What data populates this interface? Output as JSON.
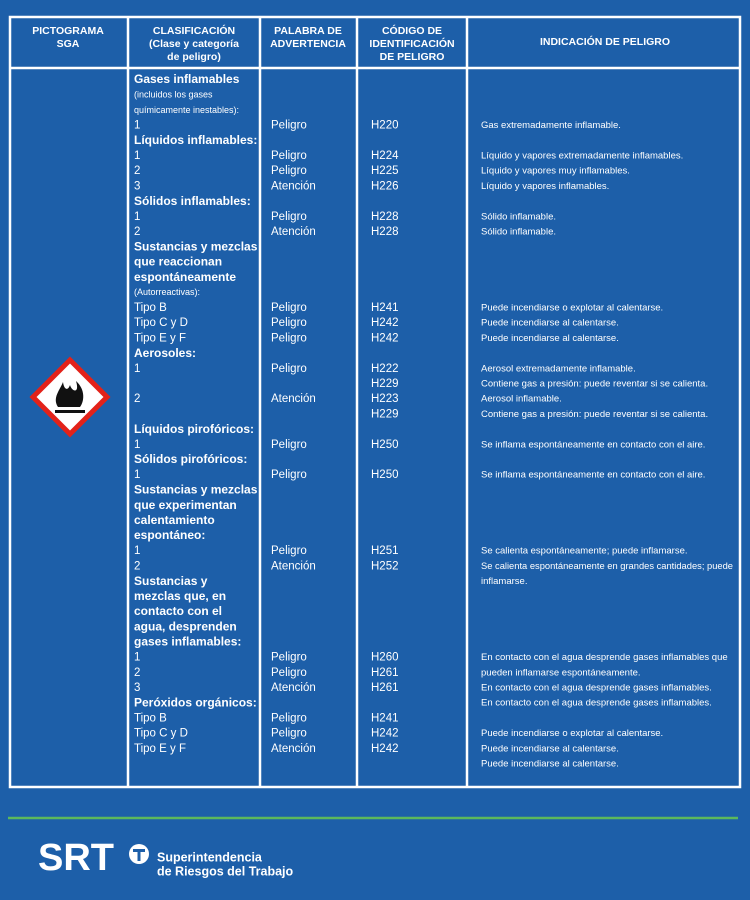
{
  "header": {
    "columns": [
      {
        "lines": [
          "PICTOGRAMA",
          "SGA"
        ]
      },
      {
        "lines": [
          "CLASIFICACIÓN",
          "(Clase y categoría",
          "de peligro)"
        ]
      },
      {
        "lines": [
          "PALABRA DE",
          "ADVERTENCIA"
        ]
      },
      {
        "lines": [
          "CÓDIGO DE",
          "IDENTIFICACIÓN",
          "DE PELIGRO"
        ]
      },
      {
        "lines": [
          "INDICACIÓN DE PELIGRO"
        ]
      }
    ]
  },
  "table": {
    "rows": [
      {
        "classification": "Gases inflamables",
        "style": "bold"
      },
      {
        "classification": "(incluidos los gases",
        "style": "note"
      },
      {
        "classification": "químicamente inestables):",
        "style": "note"
      },
      {
        "classification": "1",
        "word": "Peligro",
        "code": "H220",
        "indication": "Gas extremadamente inflamable."
      },
      {
        "classification": "Líquidos inflamables:",
        "style": "bold"
      },
      {
        "classification": "1",
        "word": "Peligro",
        "code": "H224",
        "indication": "Líquido y vapores extremadamente inflamables."
      },
      {
        "classification": "2",
        "word": "Peligro",
        "code": "H225",
        "indication": "Líquido y vapores muy inflamables."
      },
      {
        "classification": "3",
        "word": "Atención",
        "code": "H226",
        "indication": "Líquido y vapores inflamables."
      },
      {
        "classification": "Sólidos inflamables:",
        "style": "bold"
      },
      {
        "classification": "1",
        "word": "Peligro",
        "code": "H228",
        "indication": "Sólido inflamable."
      },
      {
        "classification": "2",
        "word": "Atención",
        "code": "H228",
        "indication": "Sólido inflamable."
      },
      {
        "classification": "Sustancias y mezclas",
        "style": "bold"
      },
      {
        "classification": "que reaccionan",
        "style": "bold"
      },
      {
        "classification": "espontáneamente",
        "style": "bold"
      },
      {
        "classification": "(Autorreactivas):",
        "style": "note"
      },
      {
        "classification": "Tipo B",
        "word": "Peligro",
        "code": "H241",
        "indication": "Puede incendiarse o explotar al calentarse."
      },
      {
        "classification": "Tipo C y D",
        "word": "Peligro",
        "code": "H242",
        "indication": "Puede incendiarse al calentarse."
      },
      {
        "classification": "Tipo E y F",
        "word": "Peligro",
        "code": "H242",
        "indication": "Puede incendiarse al calentarse."
      },
      {
        "classification": "Aerosoles:",
        "style": "bold"
      },
      {
        "classification": "1",
        "word": "Peligro",
        "code": "H222",
        "indication": "Aerosol extremadamente inflamable."
      },
      {
        "code": "H229",
        "indication": "Contiene gas a presión: puede reventar si se calienta."
      },
      {
        "classification": "2",
        "word": "Atención",
        "code": "H223",
        "indication": "Aerosol inflamable."
      },
      {
        "code": "H229",
        "indication": "Contiene gas a presión: puede reventar si se calienta."
      },
      {
        "classification": "Líquidos pirofóricos:",
        "style": "bold"
      },
      {
        "classification": "1",
        "word": "Peligro",
        "code": "H250",
        "indication": "Se inflama espontáneamente en contacto con el aire."
      },
      {
        "classification": "Sólidos pirofóricos:",
        "style": "bold"
      },
      {
        "classification": "1",
        "word": "Peligro",
        "code": "H250",
        "indication": "Se inflama espontáneamente en contacto con el aire."
      },
      {
        "classification": "Sustancias y mezclas",
        "style": "bold"
      },
      {
        "classification": "que experimentan",
        "style": "bold"
      },
      {
        "classification": "calentamiento",
        "style": "bold"
      },
      {
        "classification": "espontáneo:",
        "style": "bold"
      },
      {
        "classification": "1",
        "word": "Peligro",
        "code": "H251",
        "indication": "Se calienta espontáneamente; puede inflamarse."
      },
      {
        "classification": "2",
        "word": "Atención",
        "code": "H252",
        "indication": "Se calienta espontáneamente en grandes  cantidades; puede"
      },
      {
        "classification": "Sustancias y",
        "style": "bold",
        "indication": "inflamarse."
      },
      {
        "classification": "mezclas que, en",
        "style": "bold"
      },
      {
        "classification": "contacto con el",
        "style": "bold"
      },
      {
        "classification": "agua, desprenden",
        "style": "bold"
      },
      {
        "classification": "gases inflamables:",
        "style": "bold"
      },
      {
        "classification": "1",
        "word": "Peligro",
        "code": "H260",
        "indication": "En contacto con el agua desprende gases inflamables que"
      },
      {
        "classification": "2",
        "word": "Peligro",
        "code": "H261",
        "indication": "pueden inflamarse espontáneamente."
      },
      {
        "classification": "3",
        "word": "Atención",
        "code": "H261",
        "indication": "En contacto con el agua desprende gases inflamables."
      },
      {
        "classification": "Peróxidos orgánicos:",
        "style": "bold",
        "indication": "En contacto con el agua desprende gases inflamables."
      },
      {
        "classification": "Tipo B",
        "word": "Peligro",
        "code": "H241"
      },
      {
        "classification": "Tipo C y D",
        "word": "Peligro",
        "code": "H242",
        "indication": "Puede incendiarse o explotar al calentarse."
      },
      {
        "classification": "Tipo E y F",
        "word": "Atención",
        "code": "H242",
        "indication": "Puede incendiarse al calentarse."
      },
      {
        "indication": "Puede incendiarse al calentarse."
      }
    ]
  },
  "footer": {
    "logo": "SRT",
    "name": [
      "Superintendencia",
      "de Riesgos del Trabajo"
    ]
  }
}
